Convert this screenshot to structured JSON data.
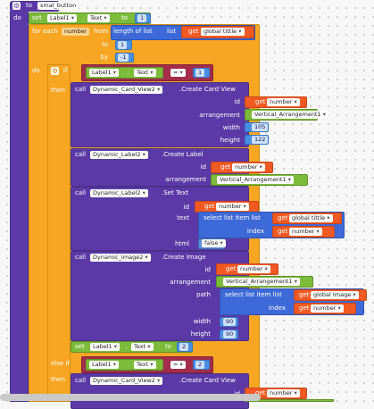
{
  "proc": {
    "to": "to",
    "name": "smal_button",
    "do": "do"
  },
  "set1": {
    "set": "set",
    "comp": "Label1",
    "prop": "Text",
    "to": "to",
    "value": "1"
  },
  "foreach": {
    "label": "for each",
    "var": "number",
    "from": "from",
    "length_of_list": "length of list",
    "list": "list",
    "get": "get",
    "global": "global tittle",
    "to": "to",
    "to_val": "1",
    "by": "by",
    "by_val": "-1"
  },
  "if1": {
    "do": "do",
    "if": "if",
    "comp": "Label1",
    "prop": "Text",
    "op": "=",
    "value": "1",
    "then": "then"
  },
  "card": {
    "call": "call",
    "comp": "Dynamic_Card_View2",
    "method": ".Create Card View",
    "id": "id",
    "get": "get",
    "var": "number",
    "arrangement": "arrangement",
    "arr_comp": "Vertical_Arrangement1",
    "width": "width",
    "width_val": "105",
    "height": "height",
    "height_val": "122"
  },
  "label": {
    "call": "call",
    "comp": "Dynamic_Label2",
    "method": ".Create Label",
    "id": "id",
    "get": "get",
    "var": "number",
    "arrangement": "arrangement",
    "arr_comp": "Vertical_Arrangement1"
  },
  "settext": {
    "call": "call",
    "comp": "Dynamic_Label2",
    "method": ".Set Text",
    "id": "id",
    "get": "get",
    "var": "number",
    "text": "text",
    "select": "select list item  list",
    "global": "global tittle",
    "index": "index",
    "html": "html",
    "html_val": "false"
  },
  "image": {
    "call": "call",
    "comp": "Dynamic_Image2",
    "method": ".Create Image",
    "id": "id",
    "get": "get",
    "var": "number",
    "arrangement": "arrangement",
    "arr_comp": "Vertical_Arrangement1",
    "path": "path",
    "select": "select list item  list",
    "global": "global Image",
    "index": "index",
    "width": "width",
    "width_val": "90",
    "height": "height",
    "height_val": "90"
  },
  "set2": {
    "set": "set",
    "comp": "Label1",
    "prop": "Text",
    "to": "to",
    "value": "2"
  },
  "elseif": {
    "label": "else if",
    "comp": "Label1",
    "prop": "Text",
    "op": "=",
    "value": "2",
    "then": "then"
  },
  "card2": {
    "call": "call",
    "comp": "Dynamic_Card_View2",
    "method": ".Create Card View",
    "id": "id",
    "get": "get",
    "var": "number"
  }
}
